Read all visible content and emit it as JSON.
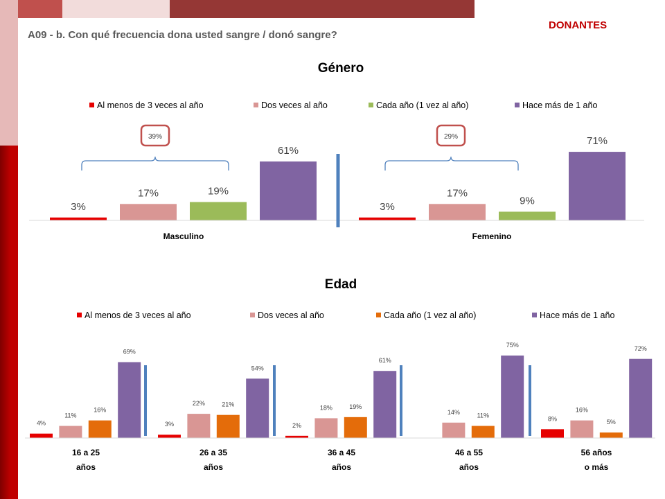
{
  "header": {
    "question": "A09 - b. Con qué frecuencia dona usted sangre / donó sangre?",
    "section_label": "DONANTES"
  },
  "colors": {
    "dark_red": "#C00000",
    "red": "#E60000",
    "pink": "#D99694",
    "green": "#9BBB59",
    "orange": "#E46C0A",
    "purple": "#8064A2",
    "bracket_blue": "#4F81BD",
    "callout_border": "#C0504D"
  },
  "chart_data": [
    {
      "type": "bar",
      "title": "Género",
      "categories": [
        "Masculino",
        "Femenino"
      ],
      "series": [
        {
          "name": "Al menos de 3 veces al año",
          "values": [
            3,
            3
          ]
        },
        {
          "name": "Dos veces al año",
          "values": [
            17,
            17
          ]
        },
        {
          "name": "Cada año (1 vez al año)",
          "values": [
            19,
            9
          ]
        },
        {
          "name": "Hace más de 1 año",
          "values": [
            61,
            71
          ]
        }
      ],
      "value_labels": [
        [
          "3%",
          "17%",
          "19%",
          "61%"
        ],
        [
          "3%",
          "17%",
          "9%",
          "71%"
        ]
      ],
      "annotations": [
        "39%",
        "29%"
      ],
      "legend": "top",
      "grid": false,
      "ylim": [
        0,
        80
      ]
    },
    {
      "type": "bar",
      "title": "Edad",
      "categories": [
        [
          "16 a 25",
          "años"
        ],
        [
          "26 a 35",
          "años"
        ],
        [
          "36 a 45",
          "años"
        ],
        [
          "46 a 55",
          "años"
        ],
        [
          "56 años",
          "o más"
        ]
      ],
      "series": [
        {
          "name": "Al menos de 3 veces al año",
          "values": [
            4,
            3,
            2,
            null,
            8
          ]
        },
        {
          "name": "Dos veces al año",
          "values": [
            11,
            22,
            18,
            14,
            16
          ]
        },
        {
          "name": "Cada año (1 vez al año)",
          "values": [
            16,
            21,
            19,
            11,
            5
          ]
        },
        {
          "name": "Hace más de 1 año",
          "values": [
            69,
            54,
            61,
            75,
            72
          ]
        }
      ],
      "value_labels": [
        [
          "4%",
          "11%",
          "16%",
          "69%"
        ],
        [
          "3%",
          "22%",
          "21%",
          "54%"
        ],
        [
          "2%",
          "18%",
          "19%",
          "61%"
        ],
        [
          "",
          "14%",
          "11%",
          "75%"
        ],
        [
          "8%",
          "16%",
          "5%",
          "72%"
        ]
      ],
      "legend": "top",
      "grid": false,
      "ylim": [
        0,
        80
      ]
    }
  ]
}
